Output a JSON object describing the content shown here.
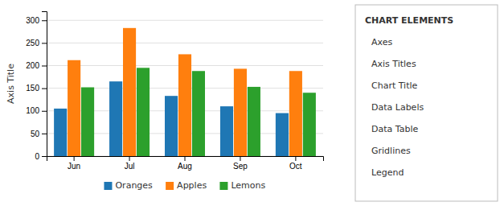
{
  "chart_data": {
    "type": "bar",
    "categories": [
      "Jun",
      "Jul",
      "Aug",
      "Sep",
      "Oct"
    ],
    "series": [
      {
        "name": "Oranges",
        "values": [
          105,
          165,
          133,
          110,
          95
        ]
      },
      {
        "name": "Apples",
        "values": [
          212,
          283,
          225,
          193,
          188
        ]
      },
      {
        "name": "Lemons",
        "values": [
          152,
          195,
          188,
          153,
          140
        ]
      }
    ],
    "ylabel": "Axis Title",
    "ylim": [
      0,
      320
    ],
    "yticks": [
      0,
      50,
      100,
      150,
      200,
      250,
      300
    ],
    "grid": true,
    "legend": "bottom",
    "annotations": [
      "CHART ELEMENTS",
      "Axes",
      "Axis Titles",
      "Chart Title",
      "Data Labels",
      "Data Table",
      "Gridlines",
      "Legend"
    ]
  }
}
